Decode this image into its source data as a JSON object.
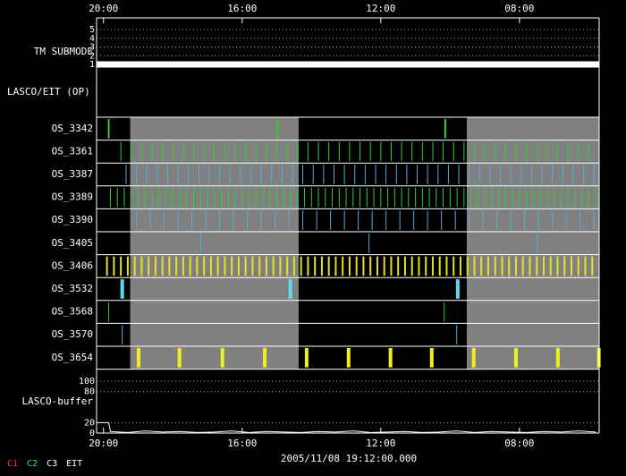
{
  "chart_data": {
    "type": "timeline",
    "xlim": [
      -0.2,
      14.3
    ],
    "xticks": [
      {
        "value": 0,
        "label": "20:00"
      },
      {
        "value": 4,
        "label": "16:00"
      },
      {
        "value": 8,
        "label": "12:00"
      },
      {
        "value": 12,
        "label": "08:00"
      }
    ],
    "x_label": "2005/11/08 19:12:00.000",
    "legend": [
      {
        "name": "C1",
        "color": "#ff3030"
      },
      {
        "name": "C2",
        "color": "#30ff30"
      },
      {
        "name": "C3",
        "color": "#ffffff"
      },
      {
        "name": "EIT",
        "color": "#ffffff"
      }
    ],
    "submode": {
      "label": "TM SUBMODE",
      "ylim": [
        1,
        5
      ],
      "yticks": [
        1,
        2,
        3,
        4,
        5
      ],
      "x": [
        -0.2,
        14.3
      ],
      "values": [
        1,
        1
      ],
      "color": "#ffffff"
    },
    "section_label": "LASCO/EIT (OP)",
    "shaded": [
      [
        0.77,
        5.63
      ],
      [
        10.48,
        14.3
      ]
    ],
    "rows": [
      {
        "name": "OS_3342",
        "color": "#30d030",
        "values": [
          0.15,
          5.01,
          9.86
        ]
      },
      {
        "name": "OS_3361",
        "color": "#30d030",
        "values": [
          0.5,
          0.8,
          1.1,
          1.4,
          1.7,
          2,
          2.3,
          2.6,
          2.9,
          3.2,
          3.5,
          3.8,
          4.1,
          4.4,
          4.7,
          5,
          5.3,
          5.6,
          5.9,
          6.2,
          6.5,
          6.8,
          7.1,
          7.4,
          7.7,
          8,
          8.3,
          8.6,
          8.9,
          9.2,
          9.5,
          9.8,
          10.1,
          10.4,
          10.7,
          11,
          11.3,
          11.6,
          11.9,
          12.2,
          12.5,
          12.8,
          13.1,
          13.4,
          13.7,
          14
        ]
      },
      {
        "name": "OS_3387",
        "color": "#50b0e0",
        "values": [
          0.65,
          0.95,
          1.25,
          1.55,
          1.85,
          2.15,
          2.45,
          2.75,
          3.05,
          3.35,
          3.65,
          3.95,
          4.25,
          4.55,
          4.85,
          5.15,
          5.45,
          5.75,
          6.05,
          6.35,
          6.65,
          6.95,
          7.25,
          7.55,
          7.85,
          8.15,
          8.45,
          8.75,
          9.05,
          9.35,
          9.65,
          9.95,
          10.25,
          10.55,
          10.85,
          11.15,
          11.45,
          11.75,
          12.05,
          12.35,
          12.65,
          12.95,
          13.25,
          13.55,
          13.85,
          14.15
        ]
      },
      {
        "name": "OS_3389",
        "color": "#30d030",
        "values": [
          0.2,
          0.4,
          0.6,
          0.8,
          1,
          1.2,
          1.4,
          1.6,
          1.8,
          2,
          2.2,
          2.4,
          2.6,
          2.8,
          3,
          3.2,
          3.4,
          3.6,
          3.8,
          4,
          4.2,
          4.4,
          4.6,
          4.8,
          5,
          5.2,
          5.4,
          5.6,
          5.8,
          6,
          6.2,
          6.4,
          6.6,
          6.8,
          7,
          7.2,
          7.4,
          7.6,
          7.8,
          8,
          8.2,
          8.4,
          8.6,
          8.8,
          9,
          9.2,
          9.4,
          9.6,
          9.8,
          10,
          10.2,
          10.4,
          10.6,
          10.8,
          11,
          11.2,
          11.4,
          11.6,
          11.8,
          12,
          12.2,
          12.4,
          12.6,
          12.8,
          13,
          13.2,
          13.4,
          13.6,
          13.8,
          14,
          14.2
        ]
      },
      {
        "name": "OS_3390",
        "color": "#50b0e0",
        "values": [
          0.95,
          1.35,
          1.75,
          2.15,
          2.55,
          2.95,
          3.35,
          3.75,
          4.15,
          4.55,
          4.95,
          5.35,
          5.75,
          6.15,
          6.55,
          6.95,
          7.35,
          7.75,
          8.15,
          8.55,
          8.95,
          9.35,
          9.75,
          10.15,
          10.55,
          10.95,
          11.35,
          11.75,
          12.15,
          12.55,
          12.95,
          13.35,
          13.75,
          14.15
        ]
      },
      {
        "name": "OS_3405",
        "color": "#50b0e0",
        "values": [
          2.81,
          7.66,
          12.52
        ]
      },
      {
        "name": "OS_3406",
        "color": "#e8e020",
        "values": [
          0.1,
          0.3,
          0.5,
          0.7,
          0.9,
          1.1,
          1.3,
          1.5,
          1.7,
          1.9,
          2.1,
          2.3,
          2.5,
          2.7,
          2.9,
          3.1,
          3.3,
          3.5,
          3.7,
          3.9,
          4.1,
          4.3,
          4.5,
          4.7,
          4.9,
          5.1,
          5.3,
          5.5,
          5.7,
          5.9,
          6.1,
          6.3,
          6.5,
          6.7,
          6.9,
          7.1,
          7.3,
          7.5,
          7.7,
          7.9,
          8.1,
          8.3,
          8.5,
          8.7,
          8.9,
          9.1,
          9.3,
          9.5,
          9.7,
          9.9,
          10.1,
          10.3,
          10.5,
          10.7,
          10.9,
          11.1,
          11.3,
          11.5,
          11.7,
          11.9,
          12.1,
          12.3,
          12.5,
          12.7,
          12.9,
          13.1,
          13.3,
          13.5,
          13.7,
          13.9,
          14.1
        ]
      },
      {
        "name": "OS_3532",
        "color": "#60d8f0",
        "values": [
          0.54,
          5.39,
          10.22
        ]
      },
      {
        "name": "OS_3568",
        "color": "#30d030",
        "values": [
          0.15,
          9.83
        ]
      },
      {
        "name": "OS_3570",
        "color": "#50b0e0",
        "values": [
          0.54,
          10.19
        ]
      },
      {
        "name": "OS_3654",
        "color": "#f0f020",
        "values": [
          1.01,
          2.19,
          3.43,
          4.65,
          5.86,
          7.07,
          8.28,
          9.47,
          10.68,
          11.9,
          13.11,
          14.29
        ]
      }
    ],
    "buffer": {
      "label": "LASCO-buffer",
      "ylim": [
        0,
        100
      ],
      "yticks": [
        0,
        20,
        80,
        100
      ],
      "x": [
        -0.2,
        0.15,
        0.2,
        0.7,
        1.2,
        1.7,
        2.2,
        2.7,
        3.2,
        3.7,
        4.2,
        4.7,
        5.2,
        5.7,
        6.2,
        6.7,
        7.2,
        7.7,
        8.2,
        8.7,
        9.2,
        9.7,
        10.2,
        10.7,
        11.2,
        11.7,
        12.2,
        12.7,
        13.2,
        13.7,
        14.2
      ],
      "values": [
        20,
        20,
        3,
        1,
        4,
        2,
        3,
        1,
        2,
        4,
        1,
        3,
        2,
        1,
        3,
        2,
        4,
        1,
        2,
        3,
        1,
        2,
        4,
        1,
        3,
        2,
        1,
        3,
        2,
        4,
        2
      ],
      "color": "#ffffff"
    }
  }
}
